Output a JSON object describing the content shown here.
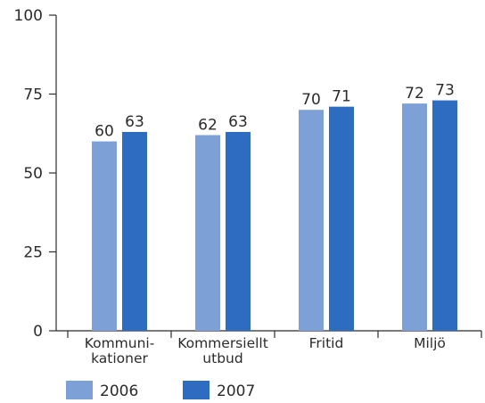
{
  "chart_data": {
    "type": "bar",
    "title": "",
    "xlabel": "",
    "ylabel": "",
    "ylim": [
      0,
      100
    ],
    "yticks": [
      0,
      25,
      50,
      75,
      100
    ],
    "categories": [
      [
        "Kommuni-",
        "kationer"
      ],
      [
        "Kommersiellt",
        "utbud"
      ],
      [
        "Fritid"
      ],
      [
        "Miljö"
      ]
    ],
    "series": [
      {
        "name": "2006",
        "values": [
          60,
          62,
          70,
          72
        ],
        "color": "#7da0d6"
      },
      {
        "name": "2007",
        "values": [
          63,
          63,
          71,
          73
        ],
        "color": "#2d6cc0"
      }
    ],
    "grid": false,
    "legend_position": "bottom-left",
    "data_labels": true
  },
  "colors": {
    "axis": "#2b2b2b",
    "text": "#2b2b2b"
  }
}
